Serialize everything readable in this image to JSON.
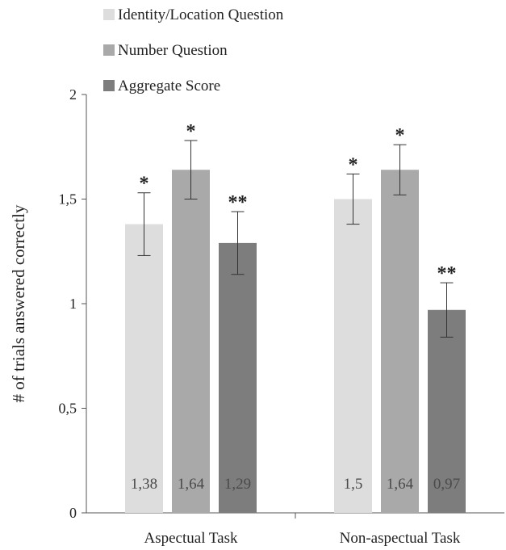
{
  "chart_data": {
    "type": "bar",
    "ylabel": "# of trials answered correctly",
    "ylim": [
      0,
      2
    ],
    "yticks": [
      {
        "value": 0,
        "label": "0"
      },
      {
        "value": 0.5,
        "label": "0,5"
      },
      {
        "value": 1,
        "label": "1"
      },
      {
        "value": 1.5,
        "label": "1,5"
      },
      {
        "value": 2,
        "label": "2"
      }
    ],
    "categories": [
      "Aspectual Task",
      "Non-aspectual Task"
    ],
    "legend_position": "top-left",
    "grid": false,
    "series": [
      {
        "name": "Identity/Location Question",
        "color": "#dddddd",
        "values": [
          1.38,
          1.5
        ],
        "value_labels": [
          "1,38",
          "1,5"
        ],
        "error": [
          0.15,
          0.12
        ],
        "significance": [
          "*",
          "*"
        ]
      },
      {
        "name": "Number Question",
        "color": "#a9a9a9",
        "values": [
          1.64,
          1.64
        ],
        "value_labels": [
          "1,64",
          "1,64"
        ],
        "error": [
          0.14,
          0.12
        ],
        "significance": [
          "*",
          "*"
        ]
      },
      {
        "name": "Aggregate Score",
        "color": "#7d7d7d",
        "values": [
          1.29,
          0.97
        ],
        "value_labels": [
          "1,29",
          "0,97"
        ],
        "error": [
          0.15,
          0.13
        ],
        "significance": [
          "**",
          "**"
        ]
      }
    ]
  }
}
